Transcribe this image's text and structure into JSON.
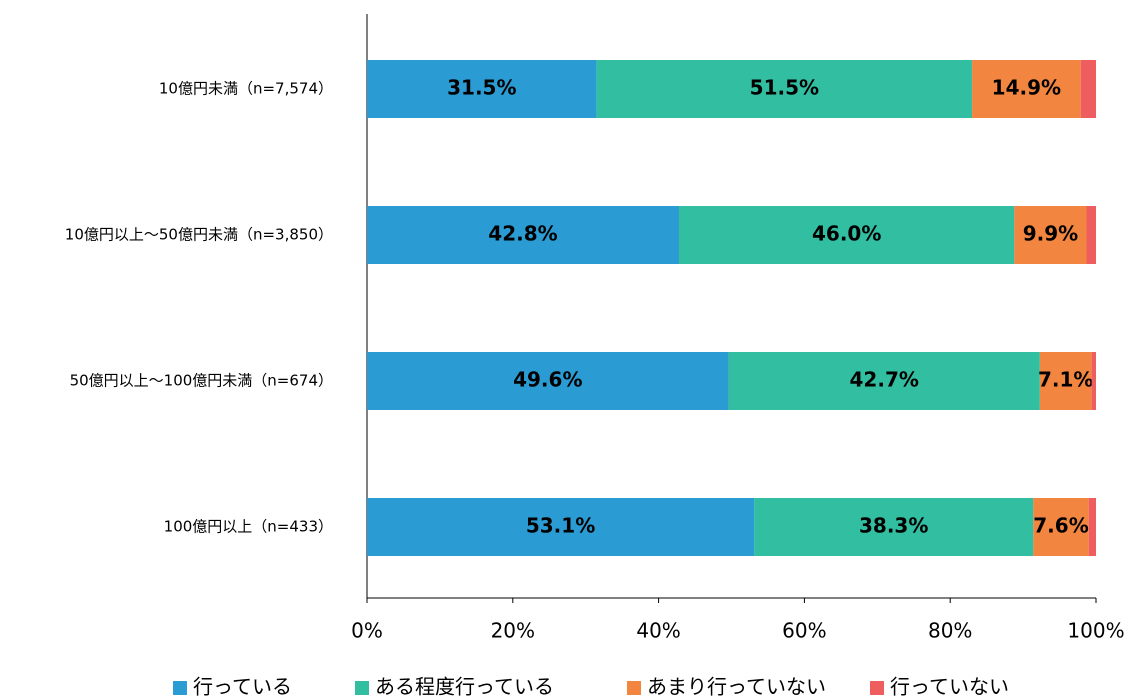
{
  "chart_data": {
    "type": "stacked-bar-horizontal",
    "categories": [
      "10億円未満（n=7,574）",
      "10億円以上～50億円未満（n=3,850）",
      "50億円以上～100億円未満（n=674）",
      "100億円以上（n=433）"
    ],
    "series": [
      {
        "name": "行っている",
        "color": "#2b9bd4",
        "values": [
          31.5,
          42.8,
          49.6,
          53.1
        ],
        "value_labels": [
          "31.5%",
          "42.8%",
          "49.6%",
          "53.1%"
        ]
      },
      {
        "name": "ある程度行っている",
        "color": "#31bea1",
        "values": [
          51.5,
          46.0,
          42.7,
          38.3
        ],
        "value_labels": [
          "51.5%",
          "46.0%",
          "42.7%",
          "38.3%"
        ]
      },
      {
        "name": "あまり行っていない",
        "color": "#f28540",
        "values": [
          14.9,
          9.9,
          7.1,
          7.6
        ],
        "value_labels": [
          "14.9%",
          "9.9%",
          "7.1%",
          "7.6%"
        ]
      },
      {
        "name": "行っていない",
        "color": "#ee5e5e",
        "values": [
          2.1,
          1.3,
          0.6,
          1.0
        ]
      }
    ],
    "xlim": [
      0,
      100
    ],
    "xticks": [
      {
        "value": 0,
        "label": "0%"
      },
      {
        "value": 20,
        "label": "20%"
      },
      {
        "value": 40,
        "label": "40%"
      },
      {
        "value": 60,
        "label": "60%"
      },
      {
        "value": 80,
        "label": "80%"
      },
      {
        "value": 100,
        "label": "100%"
      }
    ],
    "legend": "bottom"
  }
}
